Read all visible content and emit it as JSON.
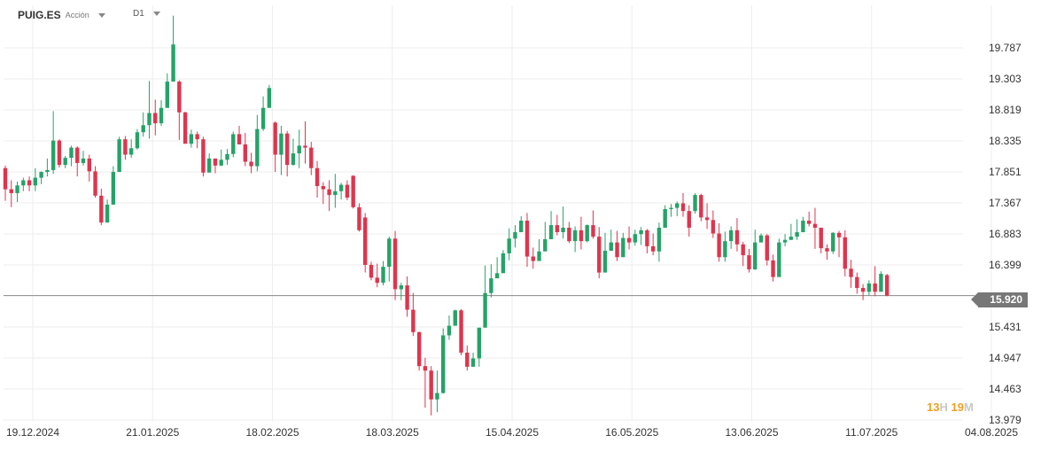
{
  "header": {
    "symbol": "PUIG.ES",
    "asset_type": "Acción",
    "timeframe": "D1"
  },
  "current_price": "15.920",
  "countdown": {
    "hours": "13",
    "hours_unit": "H",
    "minutes": "19",
    "minutes_unit": "M"
  },
  "colors": {
    "up": "#26a269",
    "down": "#e0344d",
    "grid": "#eeeeee",
    "price_line": "#888888"
  },
  "chart_data": {
    "type": "candlestick",
    "y_ticks": [
      "19.787",
      "19.303",
      "18.819",
      "18.335",
      "17.851",
      "17.367",
      "16.883",
      "16.399",
      "15.431",
      "14.947",
      "14.463",
      "13.979"
    ],
    "x_ticks": [
      "19.12.2024",
      "21.01.2025",
      "18.02.2025",
      "18.03.2025",
      "15.04.2025",
      "16.05.2025",
      "13.06.2025",
      "11.07.2025",
      "04.08.2025"
    ],
    "ylim": [
      13.979,
      20.3
    ],
    "candles": [
      [
        17.91,
        17.58,
        17.95,
        17.4
      ],
      [
        17.58,
        17.52,
        17.72,
        17.3
      ],
      [
        17.52,
        17.64,
        17.7,
        17.38
      ],
      [
        17.64,
        17.72,
        17.76,
        17.55
      ],
      [
        17.72,
        17.64,
        17.78,
        17.55
      ],
      [
        17.64,
        17.76,
        17.91,
        17.55
      ],
      [
        17.76,
        17.85,
        17.86,
        17.66
      ],
      [
        17.85,
        17.88,
        18.06,
        17.78
      ],
      [
        17.88,
        18.34,
        18.8,
        17.82
      ],
      [
        18.34,
        17.96,
        18.36,
        17.92
      ],
      [
        17.96,
        18.07,
        18.1,
        17.91
      ],
      [
        18.07,
        18.23,
        18.26,
        17.94
      ],
      [
        18.23,
        17.99,
        18.25,
        17.78
      ],
      [
        17.99,
        18.06,
        18.18,
        17.95
      ],
      [
        18.06,
        17.86,
        18.12,
        17.7
      ],
      [
        17.86,
        17.48,
        17.94,
        17.45
      ],
      [
        17.48,
        17.06,
        17.59,
        17.02
      ],
      [
        17.06,
        17.34,
        17.42,
        17.1
      ],
      [
        17.34,
        17.85,
        17.94,
        17.47
      ],
      [
        17.85,
        18.36,
        18.4,
        18.11
      ],
      [
        18.36,
        18.12,
        18.41,
        18.04
      ],
      [
        18.12,
        18.22,
        18.36,
        18.07
      ],
      [
        18.22,
        18.47,
        18.52,
        18.2
      ],
      [
        18.47,
        18.58,
        18.78,
        18.4
      ],
      [
        18.58,
        18.77,
        19.27,
        18.37
      ],
      [
        18.77,
        18.61,
        18.98,
        18.42
      ],
      [
        18.61,
        18.85,
        18.97,
        18.57
      ],
      [
        18.85,
        19.26,
        19.39,
        18.94
      ],
      [
        19.26,
        19.84,
        20.29,
        19.32
      ],
      [
        19.26,
        18.78,
        19.28,
        18.35
      ],
      [
        18.78,
        18.29,
        18.79,
        18.3
      ],
      [
        18.29,
        18.44,
        18.51,
        18.23
      ],
      [
        18.44,
        18.36,
        18.48,
        18.22
      ],
      [
        18.36,
        17.84,
        18.4,
        17.78
      ],
      [
        17.84,
        18.06,
        18.14,
        17.86
      ],
      [
        18.06,
        17.95,
        18.06,
        17.83
      ],
      [
        17.95,
        18.04,
        18.2,
        17.94
      ],
      [
        18.04,
        18.13,
        18.21,
        17.96
      ],
      [
        18.13,
        18.44,
        18.48,
        18.08
      ],
      [
        18.44,
        18.28,
        18.57,
        18.28
      ],
      [
        18.28,
        18.01,
        18.46,
        17.94
      ],
      [
        18.01,
        17.94,
        18.15,
        17.83
      ],
      [
        17.94,
        18.52,
        18.74,
        17.86
      ],
      [
        18.52,
        18.85,
        19.03,
        18.49
      ],
      [
        18.85,
        19.16,
        19.21,
        18.91
      ],
      [
        18.62,
        18.12,
        18.64,
        17.85
      ],
      [
        18.12,
        18.45,
        18.57,
        17.8
      ],
      [
        18.45,
        17.96,
        18.49,
        17.78
      ],
      [
        17.96,
        18.14,
        18.37,
        17.95
      ],
      [
        18.14,
        18.26,
        18.51,
        17.91
      ],
      [
        18.26,
        18.23,
        18.64,
        17.98
      ],
      [
        18.23,
        17.91,
        18.32,
        17.8
      ],
      [
        17.91,
        17.63,
        18.02,
        17.45
      ],
      [
        17.63,
        17.58,
        17.69,
        17.35
      ],
      [
        17.58,
        17.49,
        17.72,
        17.24
      ],
      [
        17.49,
        17.55,
        17.82,
        17.29
      ],
      [
        17.55,
        17.65,
        17.68,
        17.42
      ],
      [
        17.65,
        17.45,
        17.72,
        17.41
      ],
      [
        17.79,
        17.3,
        17.8,
        17.28
      ],
      [
        17.3,
        16.94,
        17.36,
        16.92
      ],
      [
        17.14,
        16.4,
        17.21,
        16.28
      ],
      [
        16.4,
        16.2,
        16.45,
        16.16
      ],
      [
        16.2,
        16.12,
        16.42,
        16.05
      ],
      [
        16.12,
        16.37,
        16.46,
        16.08
      ],
      [
        16.37,
        16.81,
        16.84,
        16.14
      ],
      [
        16.81,
        16.02,
        16.93,
        15.85
      ],
      [
        16.02,
        16.08,
        16.12,
        15.85
      ],
      [
        16.08,
        15.7,
        16.22,
        15.59
      ],
      [
        15.7,
        15.35,
        15.96,
        15.29
      ],
      [
        15.35,
        14.82,
        15.36,
        14.75
      ],
      [
        14.82,
        14.75,
        14.95,
        14.17
      ],
      [
        14.75,
        14.3,
        14.82,
        14.05
      ],
      [
        14.3,
        14.4,
        14.75,
        14.1
      ],
      [
        14.4,
        15.3,
        15.41,
        14.39
      ],
      [
        15.3,
        15.45,
        15.61,
        15.23
      ],
      [
        15.45,
        15.69,
        15.7,
        15.55
      ],
      [
        15.69,
        15.03,
        15.71,
        14.99
      ],
      [
        15.03,
        14.81,
        15.14,
        14.75
      ],
      [
        14.81,
        14.94,
        15.03,
        14.85
      ],
      [
        14.94,
        15.42,
        15.42,
        14.81
      ],
      [
        15.42,
        15.96,
        16.39,
        15.52
      ],
      [
        15.96,
        16.19,
        16.41,
        15.89
      ],
      [
        16.19,
        16.27,
        16.52,
        16.22
      ],
      [
        16.27,
        16.58,
        16.63,
        16.36
      ],
      [
        16.58,
        16.81,
        16.97,
        16.47
      ],
      [
        16.81,
        16.91,
        17.02,
        16.67
      ],
      [
        16.91,
        17.09,
        17.16,
        16.93
      ],
      [
        17.09,
        16.53,
        17.21,
        16.37
      ],
      [
        16.53,
        16.46,
        16.67,
        16.34
      ],
      [
        16.46,
        16.61,
        16.8,
        16.55
      ],
      [
        16.61,
        16.8,
        17.07,
        16.77
      ],
      [
        16.8,
        17.02,
        17.24,
        16.83
      ],
      [
        17.02,
        16.91,
        17.18,
        16.86
      ],
      [
        16.91,
        16.98,
        17.31,
        16.81
      ],
      [
        16.98,
        16.77,
        17.07,
        16.74
      ],
      [
        16.77,
        16.94,
        17.0,
        16.6
      ],
      [
        16.94,
        16.77,
        17.15,
        16.64
      ],
      [
        16.77,
        17.02,
        17.03,
        16.75
      ],
      [
        17.02,
        16.84,
        17.25,
        16.81
      ],
      [
        16.84,
        16.28,
        16.99,
        16.19
      ],
      [
        16.28,
        16.62,
        16.9,
        16.52
      ],
      [
        16.62,
        16.75,
        16.95,
        16.66
      ],
      [
        16.75,
        16.52,
        16.93,
        16.46
      ],
      [
        16.52,
        16.82,
        16.9,
        16.63
      ],
      [
        16.82,
        16.75,
        17.0,
        16.64
      ],
      [
        16.75,
        16.88,
        16.95,
        16.7
      ],
      [
        16.88,
        16.94,
        16.99,
        16.71
      ],
      [
        16.94,
        16.69,
        16.96,
        16.58
      ],
      [
        16.69,
        16.61,
        16.89,
        16.55
      ],
      [
        16.61,
        16.98,
        17.06,
        16.45
      ],
      [
        16.98,
        17.27,
        17.33,
        16.99
      ],
      [
        17.27,
        17.29,
        17.35,
        17.15
      ],
      [
        17.29,
        17.36,
        17.39,
        17.16
      ],
      [
        17.36,
        17.24,
        17.52,
        17.15
      ],
      [
        17.24,
        16.98,
        17.33,
        16.84
      ],
      [
        17.24,
        17.49,
        17.52,
        17.2
      ],
      [
        17.49,
        17.14,
        17.51,
        17.08
      ],
      [
        17.14,
        17.1,
        17.36,
        16.96
      ],
      [
        17.1,
        16.89,
        17.25,
        16.82
      ],
      [
        16.89,
        16.52,
        17.05,
        16.45
      ],
      [
        16.52,
        16.77,
        16.92,
        16.45
      ],
      [
        16.77,
        16.94,
        17.0,
        16.65
      ],
      [
        16.94,
        16.72,
        17.13,
        16.61
      ],
      [
        16.72,
        16.55,
        16.76,
        16.38
      ],
      [
        16.55,
        16.33,
        16.65,
        16.28
      ],
      [
        16.33,
        16.75,
        16.95,
        16.32
      ],
      [
        16.75,
        16.86,
        16.89,
        16.75
      ],
      [
        16.86,
        16.47,
        16.88,
        16.39
      ],
      [
        16.47,
        16.21,
        16.56,
        16.14
      ],
      [
        16.21,
        16.75,
        16.81,
        16.25
      ],
      [
        16.75,
        16.79,
        16.88,
        16.69
      ],
      [
        16.79,
        16.84,
        17.04,
        16.79
      ],
      [
        16.84,
        16.91,
        17.11,
        16.79
      ],
      [
        16.91,
        17.09,
        17.15,
        17.04
      ],
      [
        17.09,
        17.04,
        17.23,
        17.0
      ],
      [
        17.04,
        16.98,
        17.29,
        16.65
      ],
      [
        16.98,
        16.66,
        16.98,
        16.58
      ],
      [
        16.66,
        16.61,
        16.72,
        16.48
      ],
      [
        16.61,
        16.9,
        16.91,
        16.57
      ],
      [
        16.9,
        16.83,
        16.93,
        16.52
      ],
      [
        16.83,
        16.34,
        16.94,
        16.22
      ],
      [
        16.34,
        16.21,
        16.48,
        16.04
      ],
      [
        16.21,
        16.04,
        16.28,
        15.95
      ],
      [
        16.04,
        15.98,
        16.1,
        15.85
      ],
      [
        15.98,
        16.11,
        16.16,
        15.92
      ],
      [
        16.11,
        15.98,
        16.38,
        15.91
      ],
      [
        15.98,
        16.26,
        16.3,
        16.14
      ],
      [
        16.24,
        15.92,
        16.26,
        15.91
      ]
    ]
  }
}
